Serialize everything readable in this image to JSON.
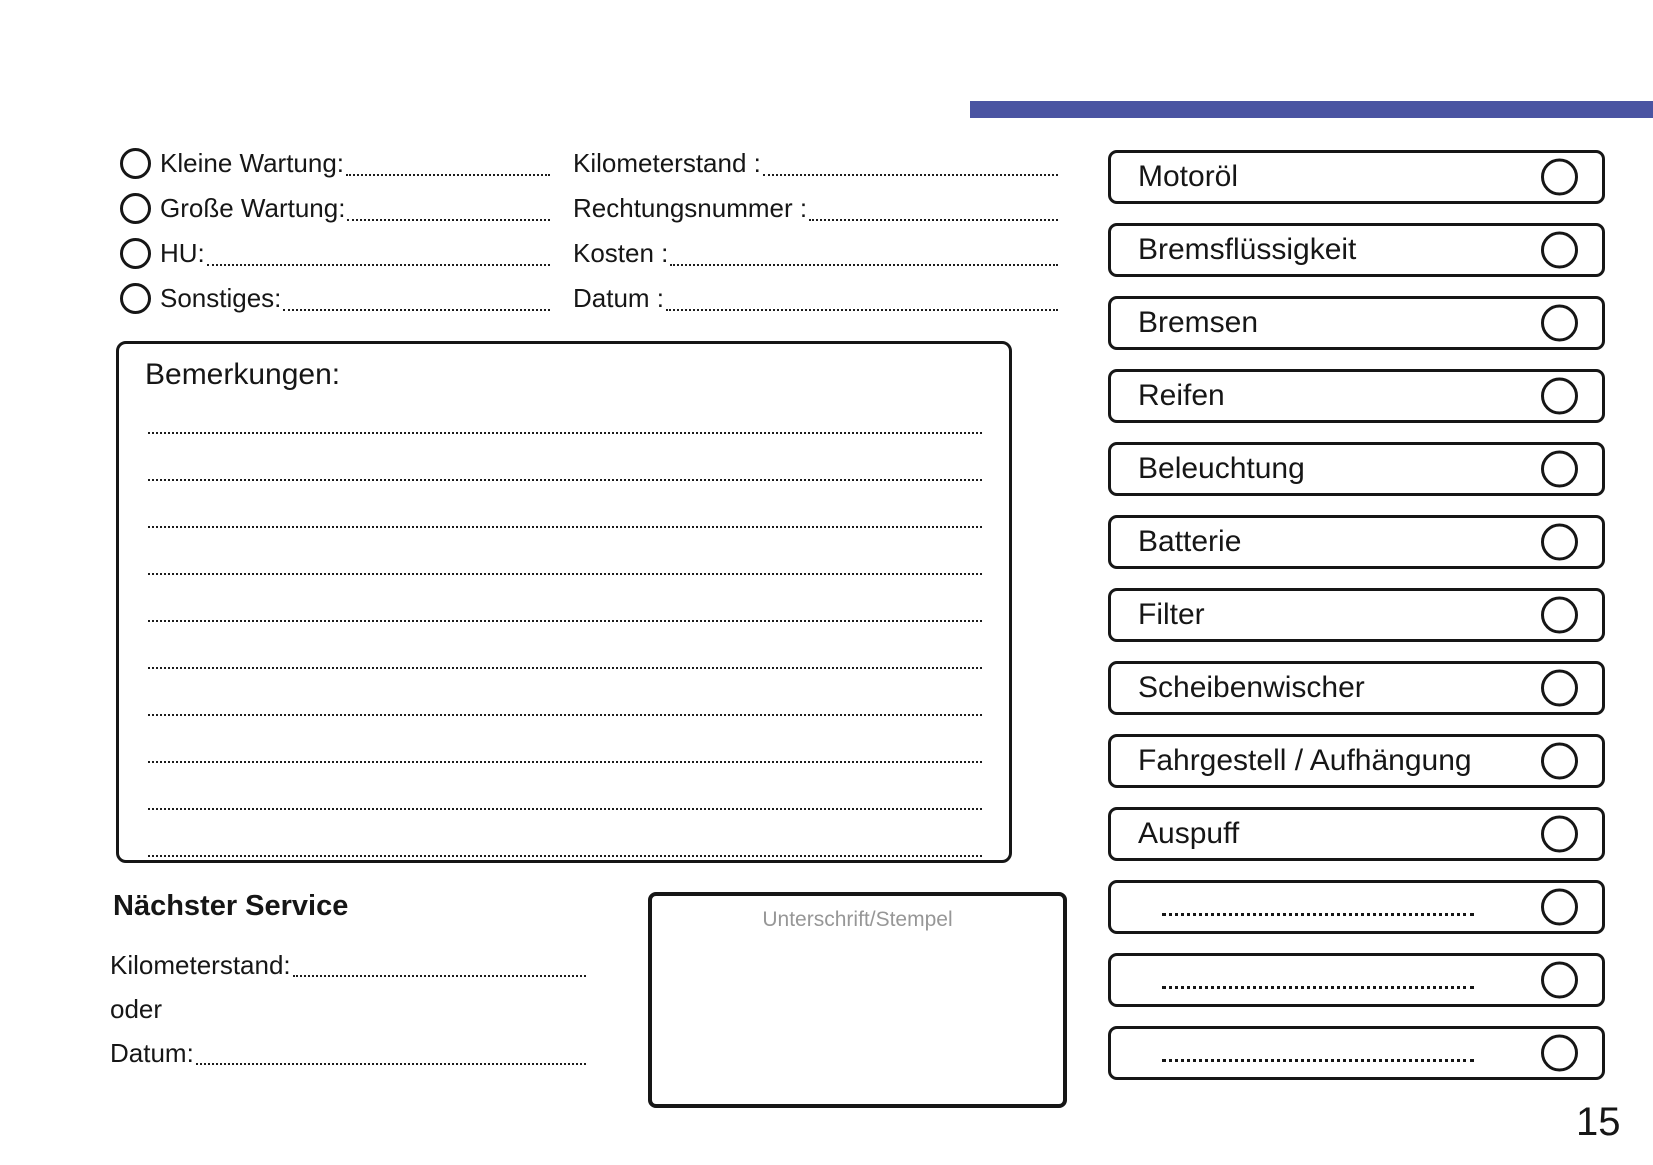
{
  "colors": {
    "accent": "#4A54A2"
  },
  "service_types": {
    "items": [
      {
        "label": "Kleine Wartung:"
      },
      {
        "label": "Große Wartung:"
      },
      {
        "label": "HU:"
      },
      {
        "label": "Sonstiges:"
      }
    ]
  },
  "invoice_fields": {
    "items": [
      {
        "label": "Kilometerstand :"
      },
      {
        "label": "Rechtungsnummer :"
      },
      {
        "label": "Kosten :"
      },
      {
        "label": "Datum :"
      }
    ]
  },
  "remarks": {
    "title": "Bemerkungen:"
  },
  "next_service": {
    "title": "Nächster Service",
    "fields": [
      {
        "label": "Kilometerstand:"
      },
      {
        "label": "oder"
      },
      {
        "label": "Datum:"
      }
    ]
  },
  "signature": {
    "label": "Unterschrift/Stempel"
  },
  "checklist": {
    "items": [
      {
        "label": "Motoröl"
      },
      {
        "label": "Bremsflüssigkeit"
      },
      {
        "label": "Bremsen"
      },
      {
        "label": "Reifen"
      },
      {
        "label": "Beleuchtung"
      },
      {
        "label": "Batterie"
      },
      {
        "label": "Filter"
      },
      {
        "label": "Scheibenwischer"
      },
      {
        "label": "Fahrgestell / Aufhängung"
      },
      {
        "label": "Auspuff"
      },
      {
        "label": ""
      },
      {
        "label": ""
      },
      {
        "label": ""
      }
    ]
  },
  "page": {
    "number": "15"
  }
}
